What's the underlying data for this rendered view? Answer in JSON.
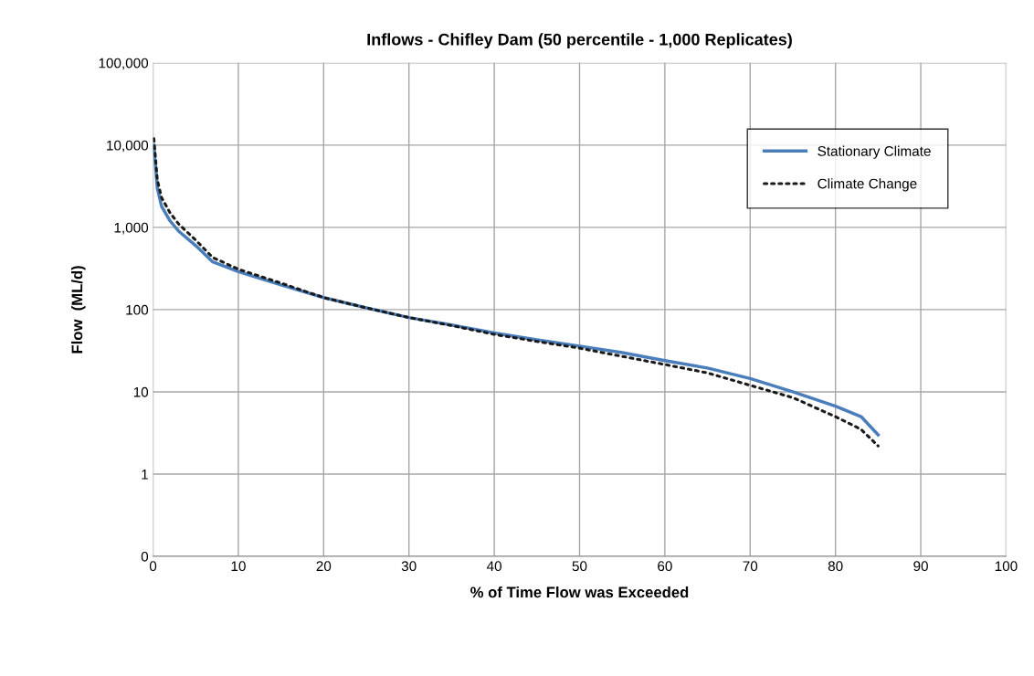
{
  "chart_data": {
    "type": "line",
    "title": "Inflows - Chifley Dam (50 percentile - 1,000 Replicates)",
    "xlabel": "% of Time Flow was Exceeded",
    "ylabel": "Flow  (ML/d)",
    "log": "y",
    "grid": true,
    "legend": "top right",
    "xlim": [
      0,
      100
    ],
    "xticks": [
      0,
      10,
      20,
      30,
      40,
      50,
      60,
      70,
      80,
      90,
      100
    ],
    "ylim": [
      0.1,
      100000
    ],
    "yticks": [
      {
        "value": 0.1,
        "label": "0"
      },
      {
        "value": 1,
        "label": "1"
      },
      {
        "value": 10,
        "label": "10"
      },
      {
        "value": 100,
        "label": "100"
      },
      {
        "value": 1000,
        "label": "1,000"
      },
      {
        "value": 10000,
        "label": "10,000"
      },
      {
        "value": 100000,
        "label": "100,000"
      }
    ],
    "series": [
      {
        "name": "Stationary Climate",
        "color": "#4a7ebb",
        "line_style": "solid",
        "x": [
          0.1,
          0.5,
          1,
          2,
          3,
          5,
          7,
          10,
          15,
          20,
          25,
          30,
          35,
          40,
          45,
          50,
          55,
          60,
          65,
          70,
          75,
          80,
          83,
          85
        ],
        "values": [
          10000,
          3000,
          1800,
          1200,
          900,
          600,
          380,
          290,
          200,
          140,
          105,
          80,
          65,
          52,
          43,
          36,
          30,
          24,
          19.5,
          14.5,
          10,
          6.7,
          5,
          3
        ]
      },
      {
        "name": "Climate Change",
        "color": "#1a1a1a",
        "line_style": "dotted",
        "x": [
          0.1,
          0.5,
          1,
          2,
          3,
          5,
          7,
          10,
          15,
          20,
          25,
          30,
          35,
          40,
          45,
          50,
          55,
          60,
          65,
          70,
          75,
          80,
          83,
          85
        ],
        "values": [
          12000,
          3800,
          2300,
          1500,
          1100,
          700,
          430,
          310,
          210,
          140,
          105,
          80,
          64,
          50,
          41,
          34,
          27,
          21.5,
          17,
          12,
          8.5,
          5,
          3.5,
          2.2
        ]
      }
    ]
  }
}
